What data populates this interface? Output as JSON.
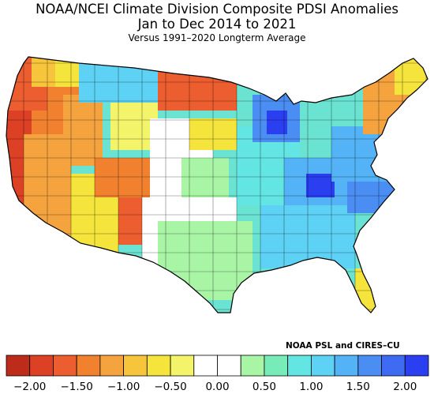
{
  "title_line1": "NOAA/NCEI Climate Division Composite PDSI Anomalies",
  "title_line2": "Jan to Dec 2014 to 2021",
  "title_line3": "Versus 1991–2020 Longterm Average",
  "credit": "NOAA PSL and CIRES–CU",
  "colorbar": {
    "colors": [
      "#bd2c1a",
      "#dc4126",
      "#ec5d2f",
      "#f1812f",
      "#f4a33f",
      "#f6c53b",
      "#f5e43c",
      "#f4f46a",
      "#ffffff",
      "#ffffff",
      "#a9f5a6",
      "#78ecb8",
      "#63e5e3",
      "#5ed2f5",
      "#54b3f6",
      "#4a8ef4",
      "#3e6bf2",
      "#2a3ff0"
    ],
    "ticks": [
      "−2.00",
      "−1.50",
      "−1.00",
      "−0.50",
      "0.00",
      "0.50",
      "1.00",
      "1.50",
      "2.00"
    ]
  },
  "map": {
    "region": "Contiguous United States climate divisions",
    "anomaly_range": [
      -2.0,
      2.0
    ],
    "regional_anomalies": [
      {
        "region": "California coast",
        "value": -2.0
      },
      {
        "region": "Pacific Northwest coast",
        "value": -1.6
      },
      {
        "region": "Nevada / Oregon interior",
        "value": -1.2
      },
      {
        "region": "Arizona / Utah",
        "value": -0.6
      },
      {
        "region": "Colorado / New Mexico border",
        "value": -1.3
      },
      {
        "region": "Northern Plains (ND)",
        "value": -1.4
      },
      {
        "region": "Montana",
        "value": 0.5
      },
      {
        "region": "Wyoming / Colorado plains",
        "value": 0.0
      },
      {
        "region": "Texas",
        "value": 0.7
      },
      {
        "region": "Central Plains",
        "value": 0.6
      },
      {
        "region": "Upper Midwest",
        "value": 1.0
      },
      {
        "region": "Wisconsin",
        "value": 1.7
      },
      {
        "region": "Ohio Valley / Kentucky",
        "value": 1.8
      },
      {
        "region": "Southeast",
        "value": 0.9
      },
      {
        "region": "Florida peninsula",
        "value": -0.4
      },
      {
        "region": "New England",
        "value": -0.8
      },
      {
        "region": "Mid-Atlantic",
        "value": 1.1
      }
    ]
  }
}
